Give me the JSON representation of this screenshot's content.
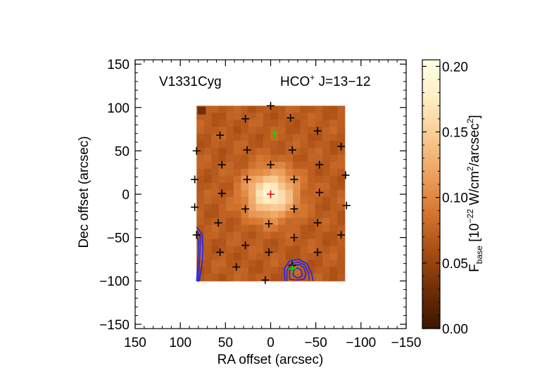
{
  "chart_data": {
    "type": "heatmap",
    "annotations": {
      "source": "V1331Cyg",
      "line_species": "HCO",
      "line_charge": "+",
      "line_transition": " J=13−12"
    },
    "xlabel": "RA offset (arcsec)",
    "ylabel": "Dec offset (arcsec)",
    "xlim": [
      150,
      -150
    ],
    "ylim": [
      -155,
      155
    ],
    "x_ticks": [
      150,
      100,
      50,
      0,
      -50,
      -100,
      -150
    ],
    "y_ticks": [
      -150,
      -100,
      -50,
      0,
      50,
      100,
      150
    ],
    "x_tick_labels": [
      "150",
      "100",
      "50",
      "0",
      "−50",
      "−100",
      "−150"
    ],
    "y_tick_labels": [
      "−150",
      "−100",
      "−50",
      "0",
      "50",
      "100",
      "150"
    ],
    "map_extent": {
      "ra": [
        82,
        -82
      ],
      "dec": [
        -100,
        102
      ]
    },
    "map_grid": {
      "nx": 20,
      "ny": 25
    },
    "emission": {
      "background_flux": 0.07,
      "peak_flux": 0.185,
      "peak_offset": [
        0,
        0
      ],
      "fwhm_arcsec": 45,
      "low_corner_offset": [
        80,
        100
      ],
      "low_corner_flux": 0.03
    },
    "colorbar": {
      "label_prefix": "F",
      "label_subscript": "base",
      "label_unit_open": " [10",
      "label_exponent": "−22",
      "label_unit_mid": " W/cm",
      "label_sq1": "2",
      "label_unit_mid2": "/arcsec",
      "label_sq2": "2",
      "label_unit_close": "]",
      "range": [
        0,
        0.205
      ],
      "ticks": [
        0.0,
        0.05,
        0.1,
        0.15,
        0.2
      ],
      "tick_labels": [
        "0.00",
        "0.05",
        "0.10",
        "0.15",
        "0.20"
      ],
      "colormap": [
        "#3a1600",
        "#6e2e07",
        "#a84c13",
        "#d47530",
        "#eda05e",
        "#f8ca92",
        "#fdeec3",
        "#ffffe8"
      ]
    },
    "pointings": [
      [
        0,
        102
      ],
      [
        -22,
        88
      ],
      [
        -52,
        73
      ],
      [
        -78,
        55
      ],
      [
        -83,
        22
      ],
      [
        -84,
        -13
      ],
      [
        -78,
        -47
      ],
      [
        -52,
        -67
      ],
      [
        -24,
        -82
      ],
      [
        6,
        -99
      ],
      [
        38,
        -84
      ],
      [
        56,
        -67
      ],
      [
        82,
        -47
      ],
      [
        84,
        -15
      ],
      [
        84,
        17
      ],
      [
        82,
        50
      ],
      [
        56,
        68
      ],
      [
        28,
        87
      ],
      [
        -4,
        70
      ],
      [
        -24,
        51
      ],
      [
        -54,
        34
      ],
      [
        -54,
        2
      ],
      [
        -52,
        -33
      ],
      [
        -26,
        -50
      ],
      [
        2,
        -67
      ],
      [
        28,
        -59
      ],
      [
        58,
        -33
      ],
      [
        28,
        -17
      ],
      [
        54,
        1
      ],
      [
        54,
        34
      ],
      [
        26,
        51
      ],
      [
        0,
        34
      ],
      [
        26,
        17
      ],
      [
        0,
        0
      ],
      [
        -26,
        17
      ],
      [
        -26,
        -17
      ],
      [
        2,
        -34
      ],
      [
        -24,
        -86
      ]
    ],
    "pointing_colors": {
      "default": "#000000",
      "center": "#ff0000",
      "alternate": "#00e000"
    },
    "highlighted_pointings": {
      "center": [
        [
          0,
          0
        ]
      ],
      "alternate": [
        [
          -4,
          70
        ],
        [
          -24,
          -86
        ]
      ]
    },
    "contours": {
      "color": "#2323e6",
      "regions": [
        {
          "name": "west-edge-contours",
          "rings": [
            [
              [
                82,
                -38
              ],
              [
                76,
                -46
              ],
              [
                75,
                -63
              ],
              [
                76,
                -80
              ],
              [
                79,
                -100
              ],
              [
                82,
                -100
              ]
            ],
            [
              [
                82,
                -42
              ],
              [
                78,
                -49
              ],
              [
                78,
                -64
              ],
              [
                79,
                -80
              ],
              [
                80,
                -100
              ]
            ],
            [
              [
                82,
                -47
              ],
              [
                80,
                -54
              ],
              [
                80,
                -66
              ],
              [
                81,
                -85
              ],
              [
                82,
                -100
              ]
            ]
          ]
        },
        {
          "name": "south-contours",
          "rings": [
            [
              [
                -16,
                -100
              ],
              [
                -15,
                -86
              ],
              [
                -21,
                -77
              ],
              [
                -31,
                -75
              ],
              [
                -40,
                -80
              ],
              [
                -45,
                -90
              ],
              [
                -47,
                -100
              ]
            ],
            [
              [
                -18,
                -100
              ],
              [
                -18,
                -88
              ],
              [
                -23,
                -80
              ],
              [
                -31,
                -78
              ],
              [
                -38,
                -82
              ],
              [
                -42,
                -91
              ],
              [
                -43,
                -100
              ]
            ],
            [
              [
                -21,
                -98
              ],
              [
                -21,
                -88
              ],
              [
                -26,
                -82
              ],
              [
                -32,
                -81
              ],
              [
                -37,
                -85
              ],
              [
                -39,
                -92
              ],
              [
                -37,
                -98
              ],
              [
                -28,
                -99
              ],
              [
                -21,
                -98
              ]
            ],
            [
              [
                -25,
                -94
              ],
              [
                -25,
                -88
              ],
              [
                -30,
                -85
              ],
              [
                -34,
                -88
              ],
              [
                -35,
                -94
              ],
              [
                -30,
                -97
              ],
              [
                -25,
                -94
              ]
            ]
          ]
        }
      ]
    }
  }
}
